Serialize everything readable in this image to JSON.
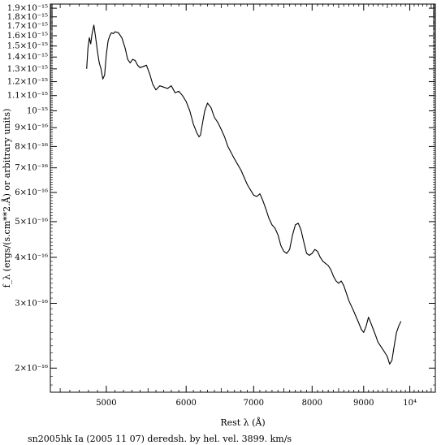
{
  "chart_data": {
    "type": "line",
    "title": "",
    "xlabel": "Rest λ (Å)",
    "ylabel": "f_λ (ergs/(s.cm**2.Å) or arbitrary units)",
    "caption": "sn2005hk Ia (2005 11 07) deredsh. by hel. vel.  3899. km/s",
    "x_scale": "log",
    "y_scale": "log",
    "xlim": [
      4400,
      10600
    ],
    "ylim": [
      1.72e-16,
      1.95e-15
    ],
    "grid": false,
    "x_ticks": [
      {
        "value": 5000,
        "label": "5000"
      },
      {
        "value": 6000,
        "label": "6000"
      },
      {
        "value": 7000,
        "label": "7000"
      },
      {
        "value": 8000,
        "label": "8000"
      },
      {
        "value": 9000,
        "label": "9000"
      },
      {
        "value": 10000,
        "label": "10⁴"
      }
    ],
    "y_ticks": [
      {
        "value": 2e-16,
        "label": "2×10⁻¹⁶"
      },
      {
        "value": 3e-16,
        "label": "3×10⁻¹⁶"
      },
      {
        "value": 4e-16,
        "label": "4×10⁻¹⁶"
      },
      {
        "value": 5e-16,
        "label": "5×10⁻¹⁶"
      },
      {
        "value": 6e-16,
        "label": "6×10⁻¹⁶"
      },
      {
        "value": 7e-16,
        "label": "7×10⁻¹⁶"
      },
      {
        "value": 8e-16,
        "label": "8×10⁻¹⁶"
      },
      {
        "value": 9e-16,
        "label": "9×10⁻¹⁶"
      },
      {
        "value": 1e-15,
        "label": "10⁻¹⁵"
      },
      {
        "value": 1.1e-15,
        "label": "1.1×10⁻¹⁵"
      },
      {
        "value": 1.2e-15,
        "label": "1.2×10⁻¹⁵"
      },
      {
        "value": 1.3e-15,
        "label": "1.3×10⁻¹⁵"
      },
      {
        "value": 1.4e-15,
        "label": "1.4×10⁻¹⁵"
      },
      {
        "value": 1.5e-15,
        "label": "1.5×10⁻¹⁵"
      },
      {
        "value": 1.6e-15,
        "label": "1.6×10⁻¹⁵"
      },
      {
        "value": 1.7e-15,
        "label": "1.7×10⁻¹⁵"
      },
      {
        "value": 1.8e-15,
        "label": "1.8×10⁻¹⁵"
      },
      {
        "value": 1.9e-15,
        "label": "1.9×10⁻¹⁵"
      }
    ],
    "series": [
      {
        "color": "#000000",
        "x": [
          4780,
          4795,
          4810,
          4825,
          4840,
          4860,
          4880,
          4900,
          4920,
          4940,
          4960,
          4980,
          5000,
          5020,
          5040,
          5060,
          5080,
          5100,
          5140,
          5180,
          5220,
          5250,
          5280,
          5310,
          5340,
          5370,
          5400,
          5440,
          5480,
          5520,
          5560,
          5600,
          5650,
          5700,
          5750,
          5800,
          5850,
          5900,
          5950,
          6000,
          6050,
          6100,
          6150,
          6180,
          6200,
          6230,
          6260,
          6300,
          6350,
          6400,
          6450,
          6500,
          6550,
          6600,
          6700,
          6800,
          6900,
          7000,
          7050,
          7100,
          7150,
          7200,
          7250,
          7300,
          7350,
          7400,
          7450,
          7500,
          7550,
          7600,
          7650,
          7700,
          7750,
          7800,
          7850,
          7900,
          7950,
          8000,
          8050,
          8100,
          8150,
          8200,
          8250,
          8300,
          8350,
          8400,
          8450,
          8500,
          8550,
          8600,
          8650,
          8700,
          8750,
          8800,
          8850,
          8900,
          8950,
          9000,
          9050,
          9100,
          9150,
          9200,
          9250,
          9300,
          9350,
          9400,
          9450,
          9500,
          9550,
          9600,
          9650,
          9700,
          9750,
          9800
        ],
        "y": [
          1.3e-15,
          1.48e-15,
          1.58e-15,
          1.52e-15,
          1.62e-15,
          1.71e-15,
          1.58e-15,
          1.45e-15,
          1.35e-15,
          1.3e-15,
          1.22e-15,
          1.25e-15,
          1.42e-15,
          1.55e-15,
          1.6e-15,
          1.63e-15,
          1.62e-15,
          1.64e-15,
          1.63e-15,
          1.58e-15,
          1.48e-15,
          1.38e-15,
          1.35e-15,
          1.38e-15,
          1.37e-15,
          1.33e-15,
          1.31e-15,
          1.32e-15,
          1.33e-15,
          1.26e-15,
          1.18e-15,
          1.14e-15,
          1.17e-15,
          1.16e-15,
          1.15e-15,
          1.17e-15,
          1.12e-15,
          1.13e-15,
          1.1e-15,
          1.06e-15,
          1e-15,
          9.2e-16,
          8.7e-16,
          8.5e-16,
          8.6e-16,
          9.3e-16,
          1e-15,
          1.05e-15,
          1.02e-15,
          9.6e-16,
          9.3e-16,
          8.9e-16,
          8.5e-16,
          8e-16,
          7.4e-16,
          6.9e-16,
          6.3e-16,
          5.9e-16,
          5.85e-16,
          5.95e-16,
          5.7e-16,
          5.4e-16,
          5.1e-16,
          4.9e-16,
          4.8e-16,
          4.6e-16,
          4.3e-16,
          4.15e-16,
          4.1e-16,
          4.2e-16,
          4.6e-16,
          4.9e-16,
          4.95e-16,
          4.75e-16,
          4.4e-16,
          4.1e-16,
          4.05e-16,
          4.1e-16,
          4.2e-16,
          4.15e-16,
          4e-16,
          3.9e-16,
          3.85e-16,
          3.8e-16,
          3.7e-16,
          3.55e-16,
          3.45e-16,
          3.4e-16,
          3.45e-16,
          3.35e-16,
          3.2e-16,
          3.05e-16,
          2.95e-16,
          2.85e-16,
          2.75e-16,
          2.65e-16,
          2.55e-16,
          2.5e-16,
          2.6e-16,
          2.75e-16,
          2.65e-16,
          2.55e-16,
          2.45e-16,
          2.35e-16,
          2.3e-16,
          2.25e-16,
          2.2e-16,
          2.15e-16,
          2.05e-16,
          2.1e-16,
          2.3e-16,
          2.5e-16,
          2.6e-16,
          2.68e-16
        ]
      }
    ]
  }
}
